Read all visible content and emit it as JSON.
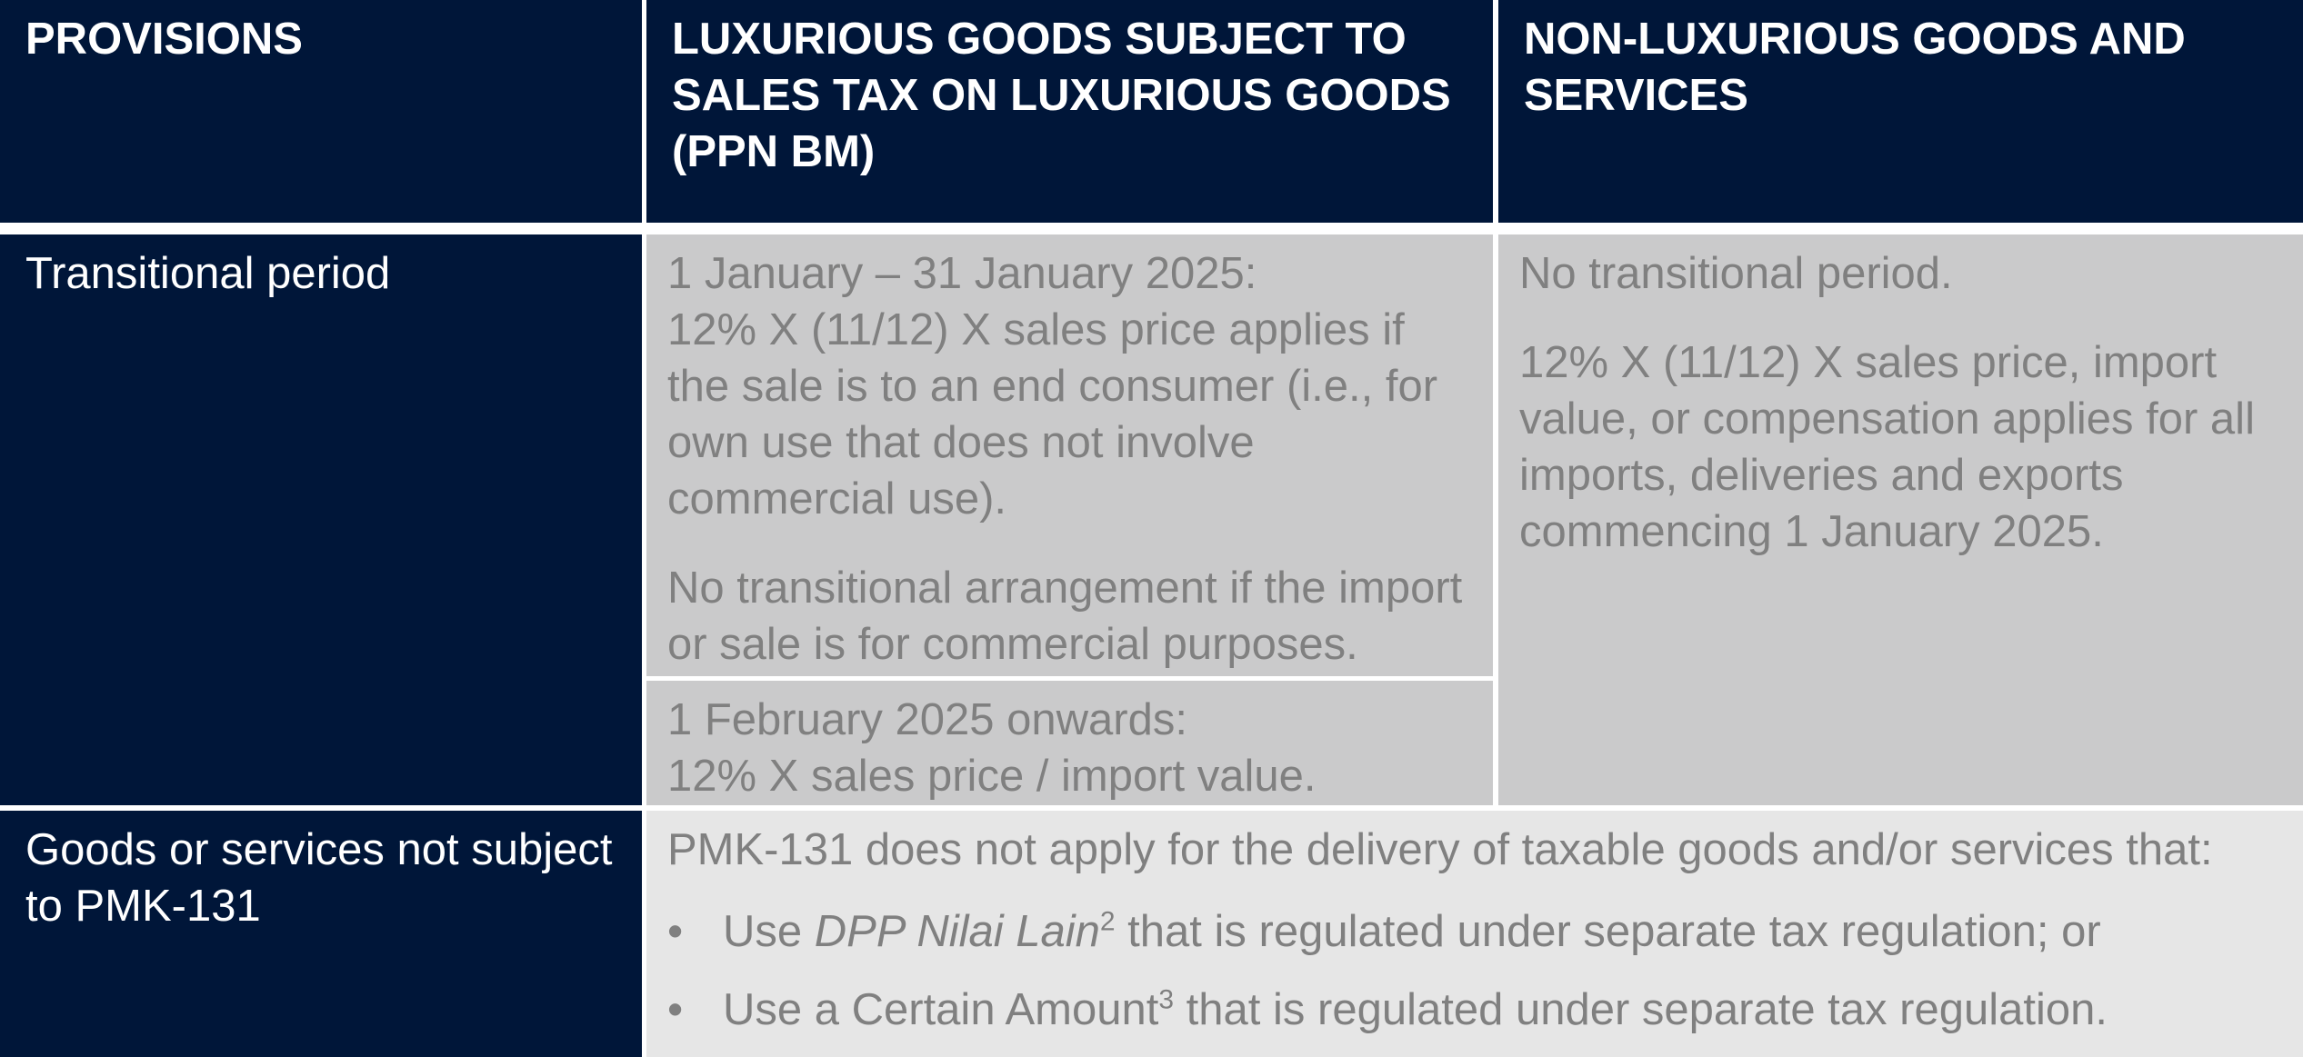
{
  "headers": {
    "provisions": "PROVISIONS",
    "luxurious": "LUXURIOUS GOODS SUBJECT TO SALES TAX ON LUXURIOUS GOODS (PPN BM)",
    "non_luxurious": "NON-LUXURIOUS GOODS AND SERVICES"
  },
  "rows": [
    {
      "label": "Transitional period",
      "luxurious": {
        "period1": {
          "date": "1 January  – 31 January 2025:",
          "rule": "12% X (11/12) X sales price applies if the sale is to an end consumer (i.e., for own use that does not involve commercial use).",
          "note": "No transitional arrangement if the import or sale is for commercial purposes."
        },
        "period2": {
          "date": "1 February 2025 onwards:",
          "rule": "12% X sales price / import value."
        }
      },
      "non_luxurious": {
        "line1": "No transitional period.",
        "line2": "12% X (11/12) X sales price, import value, or compensation applies for all imports, deliveries and exports commencing 1 January 2025."
      }
    },
    {
      "label": "Goods or services not subject to PMK-131",
      "intro": "PMK-131 does not apply for the delivery of taxable goods and/or services that:",
      "bullets": [
        {
          "marker": "•",
          "prefix": "Use ",
          "emph": "DPP Nilai Lain",
          "sup": "2",
          "suffix": " that is regulated under separate tax regulation; or"
        },
        {
          "marker": "•",
          "prefix": "Use a Certain Amount",
          "sup": "3",
          "suffix": " that is regulated under separate tax regulation."
        }
      ]
    }
  ],
  "colors": {
    "header_bg": "#001639",
    "gray_cell": "#cacacb",
    "light_cell": "#e6e6e6",
    "body_text": "#808080"
  }
}
